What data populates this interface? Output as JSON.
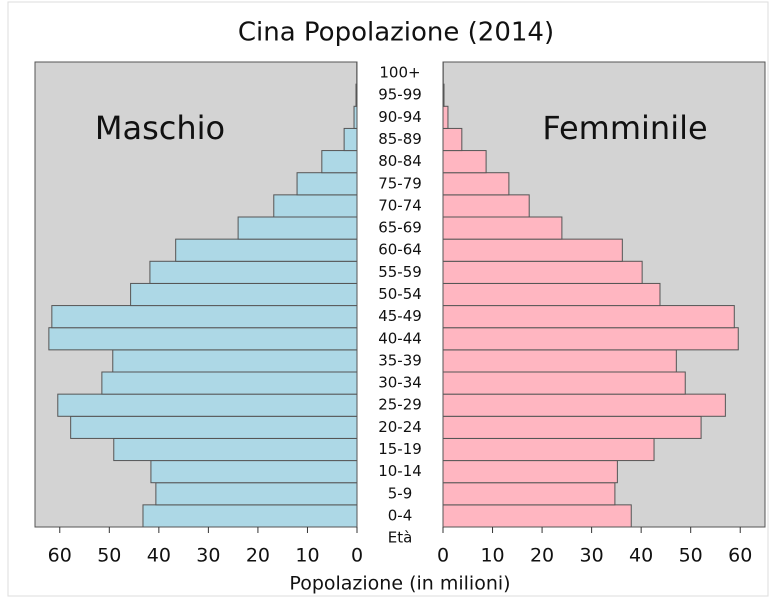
{
  "chart_data": {
    "type": "pyramid",
    "title": "Cina Popolazione (2014)",
    "x_label": "Popolazione (in milioni)",
    "y_label": "Età",
    "categories": [
      "0-4",
      "5-9",
      "10-14",
      "15-19",
      "20-24",
      "25-29",
      "30-34",
      "35-39",
      "40-44",
      "45-49",
      "50-54",
      "55-59",
      "60-64",
      "65-69",
      "70-74",
      "75-79",
      "80-84",
      "85-89",
      "90-94",
      "95-99",
      "100+"
    ],
    "series": [
      {
        "name": "Maschio",
        "color": "#add8e6",
        "values": [
          43.2,
          40.6,
          41.6,
          49.1,
          57.8,
          60.4,
          51.5,
          49.3,
          62.2,
          61.6,
          45.7,
          41.8,
          36.6,
          24.0,
          16.8,
          12.1,
          7.1,
          2.6,
          0.6,
          0.2,
          0.05
        ]
      },
      {
        "name": "Femminile",
        "color": "#ffb6c1",
        "values": [
          38.0,
          34.7,
          35.2,
          42.6,
          52.1,
          57.0,
          48.9,
          47.1,
          59.6,
          58.8,
          43.8,
          40.2,
          36.2,
          24.0,
          17.4,
          13.3,
          8.7,
          3.8,
          1.0,
          0.2,
          0.05
        ]
      }
    ],
    "xlim": [
      0,
      65
    ],
    "xticks": [
      0,
      10,
      20,
      30,
      40,
      50,
      60
    ],
    "panel_color": "#d3d3d3"
  }
}
